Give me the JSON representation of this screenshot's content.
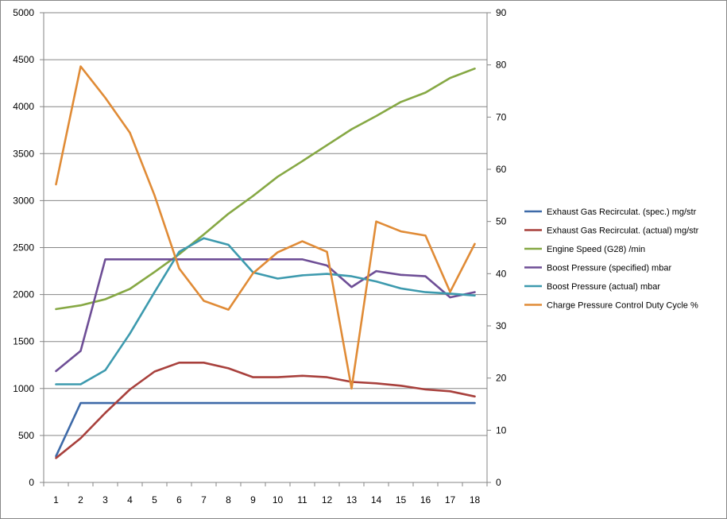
{
  "chart_data": {
    "type": "line",
    "title": "",
    "xlabel": "",
    "ylabel": "",
    "categories": [
      "1",
      "2",
      "3",
      "4",
      "5",
      "6",
      "7",
      "8",
      "9",
      "10",
      "11",
      "12",
      "13",
      "14",
      "15",
      "16",
      "17",
      "18"
    ],
    "y_left": {
      "min": 0,
      "max": 5000,
      "step": 500
    },
    "y_right": {
      "min": 0,
      "max": 90,
      "step": 10
    },
    "grid": true,
    "legend_position": "right",
    "series": [
      {
        "name": "Exhaust Gas Recirculat. (spec.)  mg/str",
        "axis": "left",
        "color": "#3E6AA8",
        "values": [
          280,
          845,
          845,
          845,
          845,
          845,
          845,
          845,
          845,
          845,
          845,
          845,
          845,
          845,
          845,
          845,
          845,
          845
        ]
      },
      {
        "name": "Exhaust Gas Recirculat. (actual)  mg/str",
        "axis": "left",
        "color": "#A8403C",
        "values": [
          260,
          470,
          740,
          990,
          1180,
          1275,
          1275,
          1215,
          1120,
          1120,
          1135,
          1120,
          1070,
          1055,
          1030,
          990,
          970,
          915
        ]
      },
      {
        "name": "Engine Speed (G28)  /min",
        "axis": "left",
        "color": "#86A844",
        "values": [
          1845,
          1885,
          1950,
          2060,
          2240,
          2430,
          2640,
          2860,
          3050,
          3255,
          3420,
          3590,
          3760,
          3900,
          4050,
          4150,
          4305,
          4405
        ]
      },
      {
        "name": "Boost Pressure (specified)  mbar",
        "axis": "left",
        "color": "#6E4E96",
        "values": [
          1185,
          1400,
          2375,
          2375,
          2375,
          2375,
          2375,
          2375,
          2375,
          2375,
          2375,
          2310,
          2080,
          2250,
          2210,
          2195,
          1970,
          2025
        ]
      },
      {
        "name": "Boost Pressure (actual)  mbar",
        "axis": "left",
        "color": "#3D9AAE",
        "values": [
          1045,
          1045,
          1195,
          1585,
          2025,
          2455,
          2600,
          2530,
          2235,
          2170,
          2205,
          2220,
          2195,
          2140,
          2065,
          2025,
          2010,
          1990
        ]
      },
      {
        "name": "Charge Pressure Control Duty Cycle  %",
        "axis": "right",
        "color": "#E08B36",
        "values": [
          57.1,
          79.7,
          73.7,
          67.0,
          55.0,
          41.0,
          34.8,
          33.1,
          40.1,
          44.1,
          46.2,
          44.2,
          18.0,
          50.0,
          48.1,
          47.3,
          36.5,
          45.7
        ]
      }
    ]
  }
}
